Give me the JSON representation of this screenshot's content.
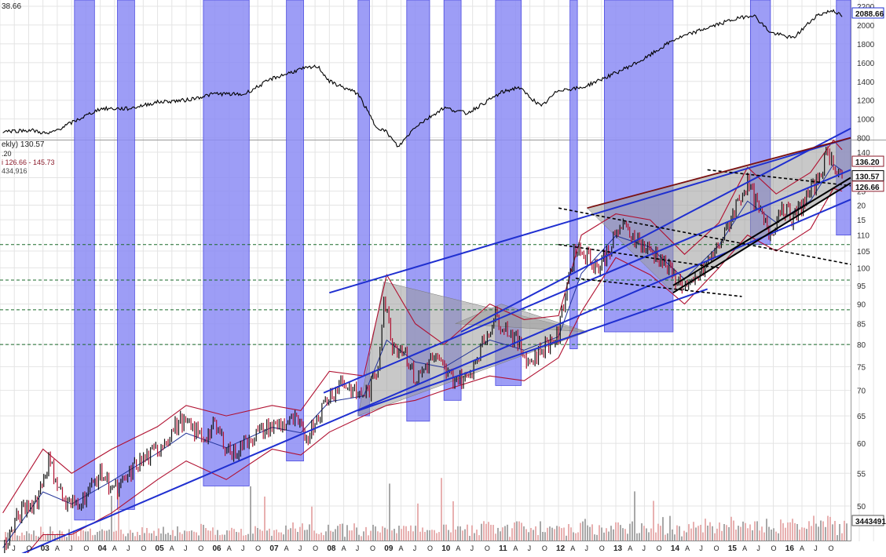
{
  "chart_data": {
    "type": "line",
    "upper_panel": {
      "label_left": "38.66",
      "last_value_label": "2088.66",
      "y_ticks": [
        {
          "v": 2200,
          "t": "2200"
        },
        {
          "v": 2000,
          "t": "2000"
        },
        {
          "v": 1800,
          "t": "1800"
        },
        {
          "v": 1600,
          "t": "1600"
        },
        {
          "v": 1400,
          "t": "1400"
        },
        {
          "v": 1200,
          "t": "1200"
        },
        {
          "v": 1000,
          "t": "1000"
        },
        {
          "v": 800,
          "t": "800"
        }
      ],
      "ylim": [
        780,
        2250
      ],
      "index_series": [
        {
          "x": 2002.3,
          "y": 870
        },
        {
          "x": 2002.8,
          "y": 880
        },
        {
          "x": 2003.1,
          "y": 840
        },
        {
          "x": 2003.6,
          "y": 990
        },
        {
          "x": 2004.0,
          "y": 1110
        },
        {
          "x": 2004.5,
          "y": 1110
        },
        {
          "x": 2005.0,
          "y": 1180
        },
        {
          "x": 2005.5,
          "y": 1200
        },
        {
          "x": 2006.0,
          "y": 1270
        },
        {
          "x": 2006.5,
          "y": 1260
        },
        {
          "x": 2007.0,
          "y": 1430
        },
        {
          "x": 2007.5,
          "y": 1530
        },
        {
          "x": 2007.8,
          "y": 1560
        },
        {
          "x": 2008.0,
          "y": 1400
        },
        {
          "x": 2008.5,
          "y": 1270
        },
        {
          "x": 2008.8,
          "y": 930
        },
        {
          "x": 2009.0,
          "y": 860
        },
        {
          "x": 2009.2,
          "y": 700
        },
        {
          "x": 2009.5,
          "y": 920
        },
        {
          "x": 2010.0,
          "y": 1120
        },
        {
          "x": 2010.4,
          "y": 1060
        },
        {
          "x": 2011.0,
          "y": 1280
        },
        {
          "x": 2011.3,
          "y": 1340
        },
        {
          "x": 2011.7,
          "y": 1130
        },
        {
          "x": 2012.0,
          "y": 1310
        },
        {
          "x": 2012.4,
          "y": 1330
        },
        {
          "x": 2013.0,
          "y": 1490
        },
        {
          "x": 2013.5,
          "y": 1640
        },
        {
          "x": 2014.0,
          "y": 1840
        },
        {
          "x": 2014.5,
          "y": 1950
        },
        {
          "x": 2015.0,
          "y": 2050
        },
        {
          "x": 2015.4,
          "y": 2110
        },
        {
          "x": 2015.7,
          "y": 1920
        },
        {
          "x": 2016.1,
          "y": 1860
        },
        {
          "x": 2016.5,
          "y": 2100
        },
        {
          "x": 2016.8,
          "y": 2160
        },
        {
          "x": 2016.95,
          "y": 2088
        }
      ]
    },
    "lower_panel": {
      "header_lines": [
        "ekly) 130.57",
        ".20",
        "i 126.66 - 145.73",
        "434,916"
      ],
      "price_labels": {
        "upper": "136.20",
        "last": "130.57",
        "lower": "126.66"
      },
      "volume_label": "3443491",
      "y_ticks": [
        {
          "v": 140,
          "t": "140"
        },
        {
          "v": 130,
          "t": "30"
        },
        {
          "v": 125,
          "t": "25"
        },
        {
          "v": 120,
          "t": "20"
        },
        {
          "v": 115,
          "t": "15"
        },
        {
          "v": 110,
          "t": "110"
        },
        {
          "v": 105,
          "t": "105"
        },
        {
          "v": 100,
          "t": "100"
        },
        {
          "v": 95,
          "t": "95"
        },
        {
          "v": 90,
          "t": "90"
        },
        {
          "v": 85,
          "t": "85"
        },
        {
          "v": 80,
          "t": "80"
        },
        {
          "v": 75,
          "t": "75"
        },
        {
          "v": 70,
          "t": "70"
        },
        {
          "v": 65,
          "t": "65"
        },
        {
          "v": 60,
          "t": "60"
        },
        {
          "v": 55,
          "t": "55"
        },
        {
          "v": 50,
          "t": "50"
        }
      ],
      "price_series": [
        {
          "x": 2002.3,
          "y": 44
        },
        {
          "x": 2002.6,
          "y": 49
        },
        {
          "x": 2002.9,
          "y": 51
        },
        {
          "x": 2003.1,
          "y": 57
        },
        {
          "x": 2003.4,
          "y": 50
        },
        {
          "x": 2003.7,
          "y": 51
        },
        {
          "x": 2004.0,
          "y": 55
        },
        {
          "x": 2004.3,
          "y": 52
        },
        {
          "x": 2004.6,
          "y": 56
        },
        {
          "x": 2005.0,
          "y": 59
        },
        {
          "x": 2005.4,
          "y": 64
        },
        {
          "x": 2005.8,
          "y": 61
        },
        {
          "x": 2006.0,
          "y": 63
        },
        {
          "x": 2006.3,
          "y": 58
        },
        {
          "x": 2006.6,
          "y": 61
        },
        {
          "x": 2007.0,
          "y": 63
        },
        {
          "x": 2007.4,
          "y": 64
        },
        {
          "x": 2007.6,
          "y": 61
        },
        {
          "x": 2007.9,
          "y": 67
        },
        {
          "x": 2008.2,
          "y": 72
        },
        {
          "x": 2008.5,
          "y": 69
        },
        {
          "x": 2008.7,
          "y": 70
        },
        {
          "x": 2008.85,
          "y": 75
        },
        {
          "x": 2008.95,
          "y": 92
        },
        {
          "x": 2009.1,
          "y": 80
        },
        {
          "x": 2009.3,
          "y": 79
        },
        {
          "x": 2009.5,
          "y": 72
        },
        {
          "x": 2009.8,
          "y": 77
        },
        {
          "x": 2010.1,
          "y": 73
        },
        {
          "x": 2010.4,
          "y": 72
        },
        {
          "x": 2010.7,
          "y": 81
        },
        {
          "x": 2010.9,
          "y": 87
        },
        {
          "x": 2011.2,
          "y": 82
        },
        {
          "x": 2011.5,
          "y": 76
        },
        {
          "x": 2011.8,
          "y": 80
        },
        {
          "x": 2012.0,
          "y": 82
        },
        {
          "x": 2012.15,
          "y": 96
        },
        {
          "x": 2012.3,
          "y": 106
        },
        {
          "x": 2012.5,
          "y": 104
        },
        {
          "x": 2012.7,
          "y": 100
        },
        {
          "x": 2012.9,
          "y": 106
        },
        {
          "x": 2013.1,
          "y": 113
        },
        {
          "x": 2013.3,
          "y": 110
        },
        {
          "x": 2013.5,
          "y": 106
        },
        {
          "x": 2013.7,
          "y": 104
        },
        {
          "x": 2013.9,
          "y": 100
        },
        {
          "x": 2014.1,
          "y": 96
        },
        {
          "x": 2014.3,
          "y": 94
        },
        {
          "x": 2014.5,
          "y": 99
        },
        {
          "x": 2014.7,
          "y": 104
        },
        {
          "x": 2014.9,
          "y": 110
        },
        {
          "x": 2015.1,
          "y": 120
        },
        {
          "x": 2015.3,
          "y": 128
        },
        {
          "x": 2015.5,
          "y": 118
        },
        {
          "x": 2015.7,
          "y": 110
        },
        {
          "x": 2015.9,
          "y": 120
        },
        {
          "x": 2016.1,
          "y": 115
        },
        {
          "x": 2016.3,
          "y": 122
        },
        {
          "x": 2016.5,
          "y": 128
        },
        {
          "x": 2016.7,
          "y": 140
        },
        {
          "x": 2016.8,
          "y": 135
        },
        {
          "x": 2016.95,
          "y": 130.57
        }
      ],
      "bollinger_upper": [
        {
          "x": 2002.3,
          "y": 49
        },
        {
          "x": 2003.0,
          "y": 59
        },
        {
          "x": 2003.5,
          "y": 55
        },
        {
          "x": 2004.2,
          "y": 59
        },
        {
          "x": 2005.0,
          "y": 63
        },
        {
          "x": 2005.5,
          "y": 67
        },
        {
          "x": 2006.2,
          "y": 65
        },
        {
          "x": 2007.0,
          "y": 67
        },
        {
          "x": 2007.5,
          "y": 66
        },
        {
          "x": 2008.0,
          "y": 74
        },
        {
          "x": 2008.6,
          "y": 73
        },
        {
          "x": 2009.0,
          "y": 98
        },
        {
          "x": 2009.5,
          "y": 85
        },
        {
          "x": 2010.0,
          "y": 80
        },
        {
          "x": 2010.8,
          "y": 90
        },
        {
          "x": 2011.4,
          "y": 86
        },
        {
          "x": 2012.0,
          "y": 87
        },
        {
          "x": 2012.4,
          "y": 110
        },
        {
          "x": 2013.0,
          "y": 117
        },
        {
          "x": 2013.6,
          "y": 115
        },
        {
          "x": 2014.2,
          "y": 104
        },
        {
          "x": 2014.8,
          "y": 114
        },
        {
          "x": 2015.3,
          "y": 134
        },
        {
          "x": 2015.8,
          "y": 124
        },
        {
          "x": 2016.4,
          "y": 132
        },
        {
          "x": 2016.8,
          "y": 145
        },
        {
          "x": 2016.95,
          "y": 141
        }
      ],
      "bollinger_lower": [
        {
          "x": 2002.3,
          "y": 40
        },
        {
          "x": 2003.0,
          "y": 46
        },
        {
          "x": 2003.5,
          "y": 46
        },
        {
          "x": 2004.2,
          "y": 49
        },
        {
          "x": 2005.0,
          "y": 54
        },
        {
          "x": 2005.5,
          "y": 57
        },
        {
          "x": 2006.2,
          "y": 54
        },
        {
          "x": 2007.0,
          "y": 59
        },
        {
          "x": 2007.5,
          "y": 58
        },
        {
          "x": 2008.0,
          "y": 62
        },
        {
          "x": 2008.6,
          "y": 65
        },
        {
          "x": 2009.0,
          "y": 67
        },
        {
          "x": 2009.5,
          "y": 68
        },
        {
          "x": 2010.0,
          "y": 70
        },
        {
          "x": 2010.8,
          "y": 73
        },
        {
          "x": 2011.4,
          "y": 72
        },
        {
          "x": 2012.0,
          "y": 77
        },
        {
          "x": 2012.4,
          "y": 88
        },
        {
          "x": 2013.0,
          "y": 103
        },
        {
          "x": 2013.6,
          "y": 98
        },
        {
          "x": 2014.2,
          "y": 90
        },
        {
          "x": 2014.8,
          "y": 100
        },
        {
          "x": 2015.3,
          "y": 110
        },
        {
          "x": 2015.8,
          "y": 105
        },
        {
          "x": 2016.4,
          "y": 112
        },
        {
          "x": 2016.8,
          "y": 126
        },
        {
          "x": 2016.95,
          "y": 125
        }
      ],
      "horizontal_levels": [
        107,
        96.5,
        88.5,
        80
      ],
      "channel_lines": [
        {
          "x1": 2002.3,
          "y1": 42.5,
          "x2": 2017.1,
          "y2": 122
        },
        {
          "x1": 2007.9,
          "y1": 69.5,
          "x2": 2017.1,
          "y2": 133
        },
        {
          "x1": 2008.0,
          "y1": 93,
          "x2": 2017.1,
          "y2": 146
        },
        {
          "x1": 2010.3,
          "y1": 83,
          "x2": 2017.1,
          "y2": 150
        },
        {
          "x1": 2008.5,
          "y1": 66,
          "x2": 2014.6,
          "y2": 94
        }
      ],
      "black_trend_lines": [
        {
          "x1": 2014.0,
          "y1": 93,
          "x2": 2017.1,
          "y2": 128
        },
        {
          "x1": 2014.0,
          "y1": 95,
          "x2": 2017.1,
          "y2": 130
        }
      ],
      "dashed_lines": [
        {
          "x1": 2012.0,
          "y1": 119,
          "x2": 2017.1,
          "y2": 101
        },
        {
          "x1": 2012.0,
          "y1": 107,
          "x2": 2014.8,
          "y2": 100
        },
        {
          "x1": 2012.3,
          "y1": 97,
          "x2": 2015.2,
          "y2": 92
        },
        {
          "x1": 2014.6,
          "y1": 133,
          "x2": 2017.1,
          "y2": 127
        }
      ],
      "dark_red_line": {
        "x1": 2012.5,
        "y1": 119,
        "x2": 2017.1,
        "y2": 146
      },
      "gray_triangles": [
        [
          {
            "x": 2008.95,
            "y": 96
          },
          {
            "x": 2008.5,
            "y": 65
          },
          {
            "x": 2012.5,
            "y": 83
          }
        ],
        [
          {
            "x": 2010.2,
            "y": 85
          },
          {
            "x": 2011.0,
            "y": 90
          },
          {
            "x": 2012.5,
            "y": 83
          }
        ],
        [
          {
            "x": 2012.5,
            "y": 119
          },
          {
            "x": 2017.1,
            "y": 146
          },
          {
            "x": 2017.1,
            "y": 128
          },
          {
            "x": 2014.0,
            "y": 93
          }
        ]
      ],
      "recession_bands": [
        {
          "x1": 2003.55,
          "x2": 2003.9,
          "top": 142,
          "bottom": 48
        },
        {
          "x1": 2004.3,
          "x2": 2004.6,
          "top": 142,
          "bottom": 49.5
        },
        {
          "x1": 2005.8,
          "x2": 2006.6,
          "top": 142,
          "bottom": 53
        },
        {
          "x1": 2007.25,
          "x2": 2007.55,
          "top": 142,
          "bottom": 57
        },
        {
          "x1": 2008.5,
          "x2": 2008.7,
          "top": 142,
          "bottom": 65
        },
        {
          "x1": 2009.35,
          "x2": 2009.75,
          "top": 142,
          "bottom": 64
        },
        {
          "x1": 2010.0,
          "x2": 2010.3,
          "top": 142,
          "bottom": 68
        },
        {
          "x1": 2010.9,
          "x2": 2011.35,
          "top": 142,
          "bottom": 71
        },
        {
          "x1": 2012.2,
          "x2": 2012.33,
          "top": 142,
          "bottom": 79
        },
        {
          "x1": 2012.8,
          "x2": 2014.0,
          "top": 142,
          "bottom": 83
        },
        {
          "x1": 2015.35,
          "x2": 2015.7,
          "top": 142,
          "bottom": 107
        },
        {
          "x1": 2016.85,
          "x2": 2017.1,
          "top": 142,
          "bottom": 110
        }
      ],
      "upper_band_tops": [
        {
          "x1": 2003.55,
          "x2": 2003.9,
          "top": 2250
        },
        {
          "x1": 2004.3,
          "x2": 2004.6,
          "top": 2250
        },
        {
          "x1": 2005.8,
          "x2": 2006.6,
          "top": 2250
        },
        {
          "x1": 2007.25,
          "x2": 2007.55,
          "top": 2250
        },
        {
          "x1": 2008.5,
          "x2": 2008.7,
          "top": 2250
        },
        {
          "x1": 2009.35,
          "x2": 2009.75,
          "top": 2250
        },
        {
          "x1": 2010.0,
          "x2": 2010.3,
          "top": 2250
        },
        {
          "x1": 2010.9,
          "x2": 2011.35,
          "top": 2250
        },
        {
          "x1": 2012.2,
          "x2": 2012.33,
          "top": 2250
        },
        {
          "x1": 2012.8,
          "x2": 2014.0,
          "top": 2250
        },
        {
          "x1": 2015.35,
          "x2": 2015.7,
          "top": 2250
        },
        {
          "x1": 2016.85,
          "x2": 2017.1,
          "top": 2250
        }
      ]
    },
    "x_axis": {
      "months": [
        "J",
        "O",
        "03",
        "A",
        "J",
        "O",
        "04",
        "A",
        "J",
        "O",
        "05",
        "A",
        "J",
        "O",
        "06",
        "A",
        "J",
        "O",
        "07",
        "A",
        "J",
        "O",
        "08",
        "A",
        "J",
        "O",
        "09",
        "A",
        "J",
        "O",
        "10",
        "A",
        "J",
        "O",
        "11",
        "A",
        "J",
        "O",
        "12",
        "A",
        "J",
        "O",
        "13",
        "A",
        "J",
        "O",
        "14",
        "A",
        "J",
        "O",
        "15",
        "A",
        "J",
        "O",
        "16",
        "A",
        "J",
        "O"
      ],
      "start_x": 2002.5,
      "step": 0.25
    },
    "colors": {
      "band": "#8c8cf5",
      "band_stroke": "#4b4be0",
      "channel": "#1f2fd0",
      "bollinger": "#b01030",
      "ma": "#223399",
      "level": "#1a6a2a",
      "triangle": "#9a9a9a",
      "index": "#000000",
      "volume": "#e8b0b0",
      "volume_gray": "#a8a8a8"
    }
  }
}
